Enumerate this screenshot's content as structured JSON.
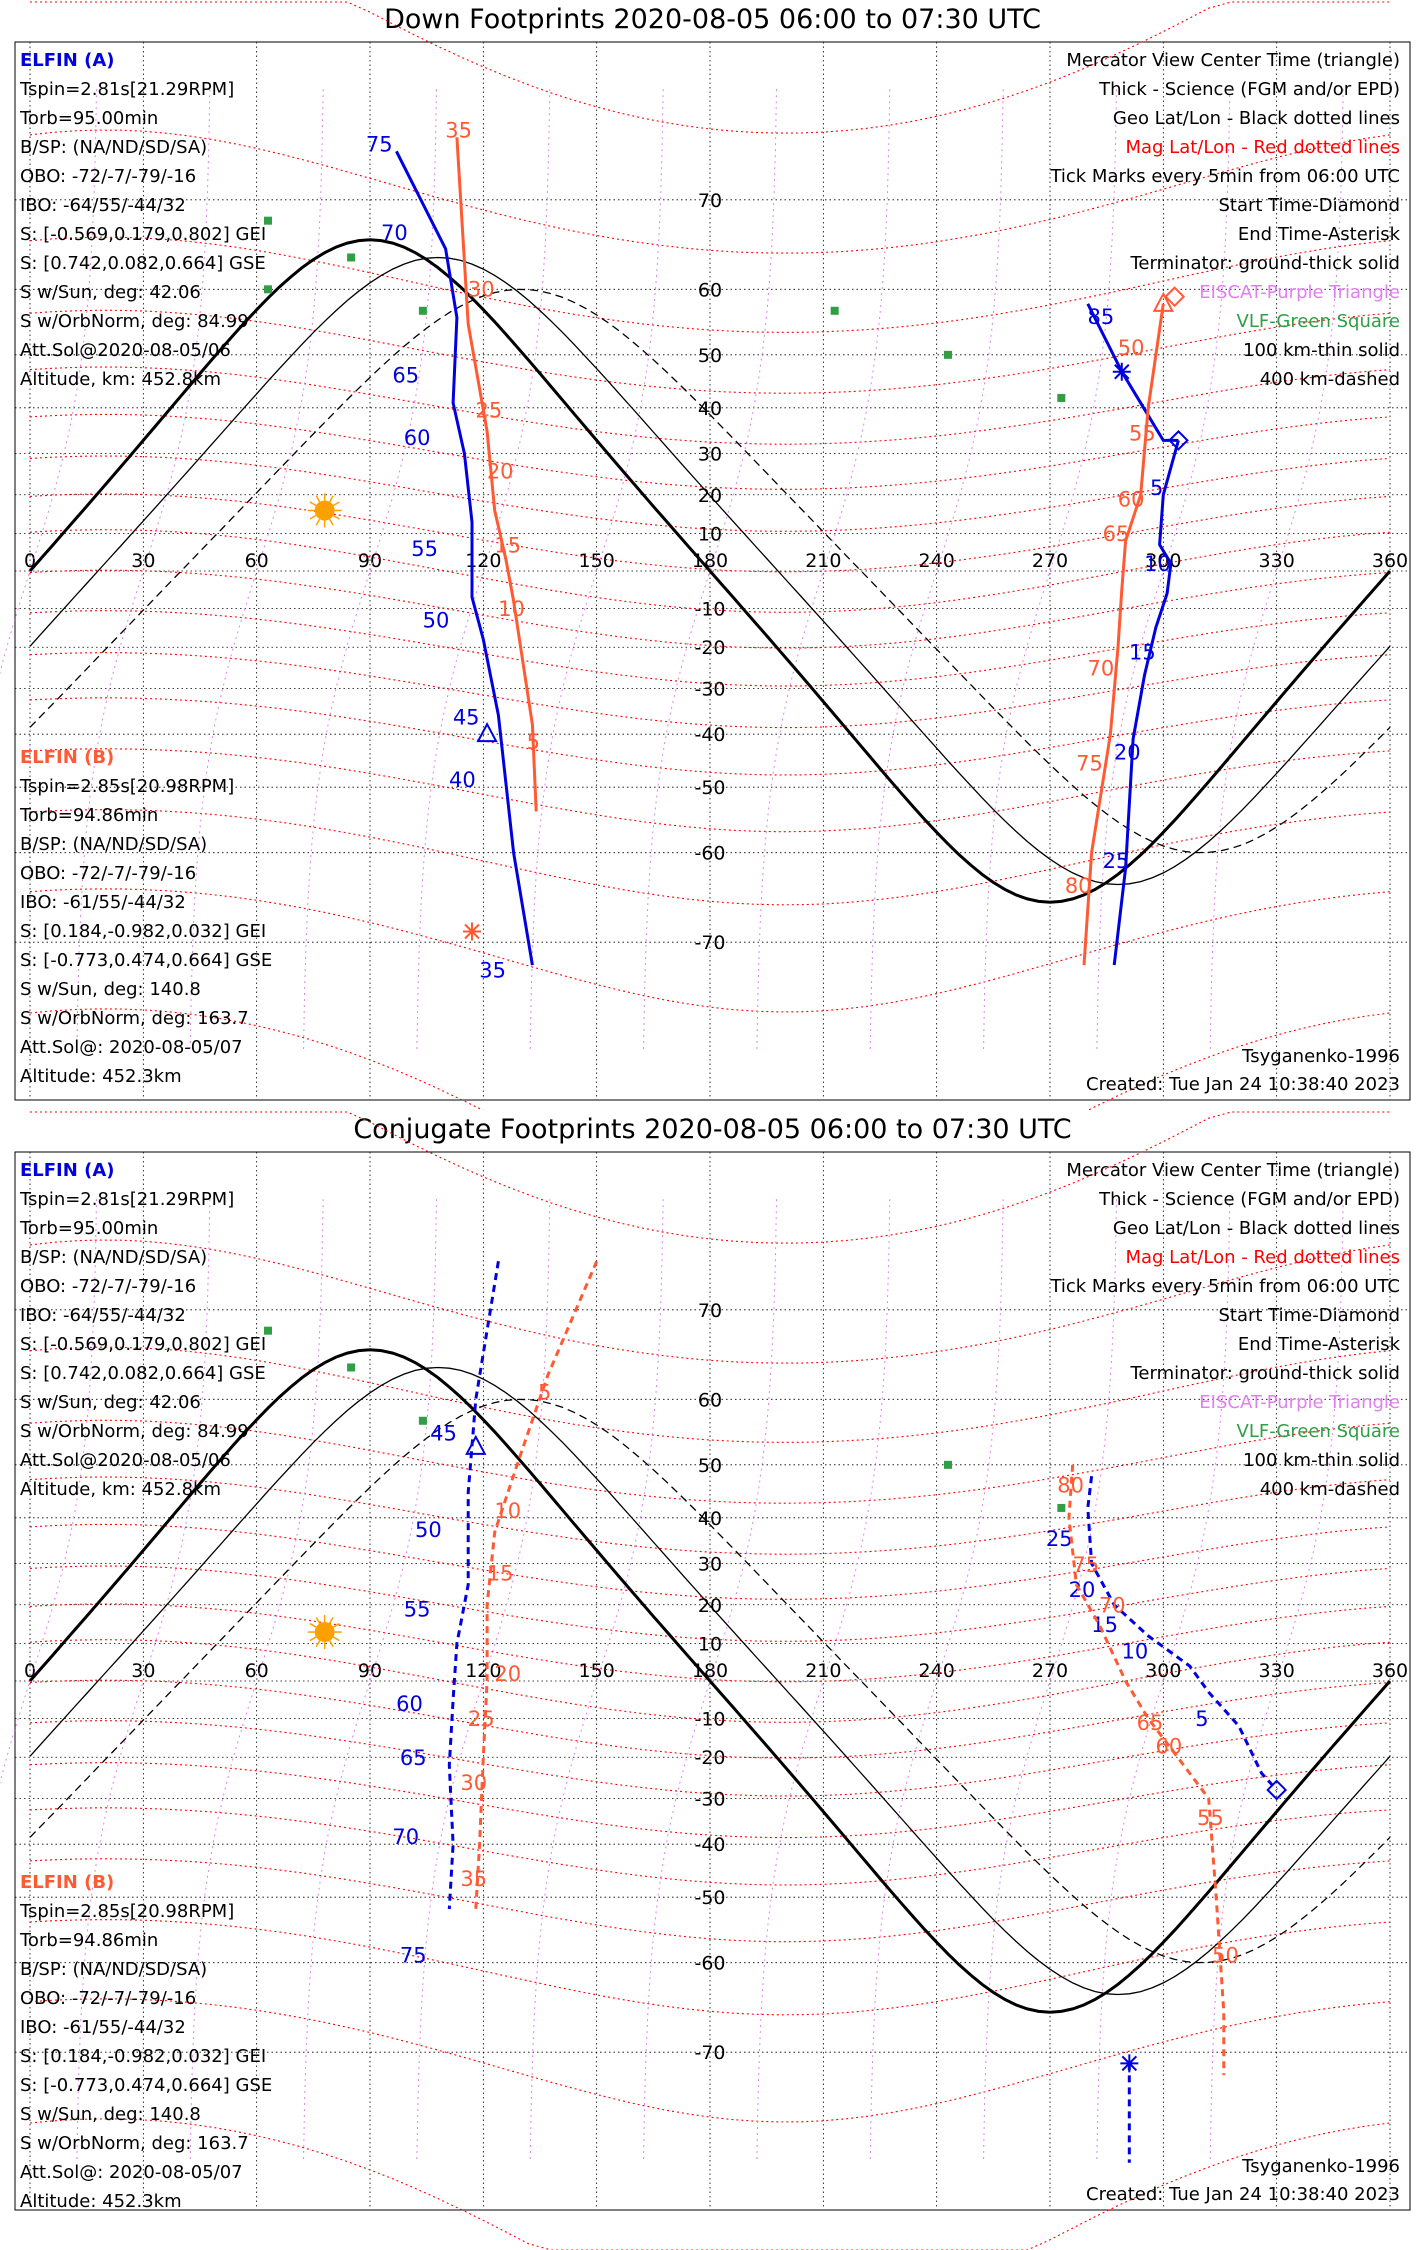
{
  "colors": {
    "sat_a": "#0000e0",
    "sat_b": "#ff5a33",
    "mag_grid": "#ff0000",
    "geo_grid": "#000000",
    "eiscat": "#e080f0",
    "vlf": "#2f9e44",
    "terminator": "#000000",
    "map": "#888888",
    "sun": "#ffa000"
  },
  "panels": [
    {
      "title": "Down Footprints 2020-08-05 06:00 to 07:30 UTC",
      "elfin_a": {
        "name": "ELFIN (A)",
        "lines": [
          "Tspin=2.81s[21.29RPM]",
          "Torb=95.00min",
          "B/SP: (NA/ND/SD/SA)",
          "OBO: -72/-7/-79/-16",
          "IBO: -64/55/-44/32",
          "S: [-0.569,0.179,0.802] GEI",
          "S: [0.742,0.082,0.664] GSE",
          "S w/Sun, deg: 42.06",
          "S w/OrbNorm, deg: 84.99",
          "Att.Sol@2020-08-05/06",
          "Altitude, km: 452.8km"
        ]
      },
      "elfin_b": {
        "name": "ELFIN (B)",
        "lines": [
          "Tspin=2.85s[20.98RPM]",
          "Torb=94.86min",
          "B/SP: (NA/ND/SD/SA)",
          "OBO: -72/-7/-79/-16",
          "IBO: -61/55/-44/32",
          "S: [0.184,-0.982,0.032] GEI",
          "S: [-0.773,0.474,0.664] GSE",
          "S w/Sun, deg: 140.8",
          "S w/OrbNorm, deg: 163.7",
          "Att.Sol@: 2020-08-05/07",
          "Altitude: 452.3km"
        ]
      },
      "legend": [
        "Mercator View Center Time (triangle)",
        "Thick - Science (FGM and/or EPD)",
        "Geo Lat/Lon - Black dotted lines",
        "Mag Lat/Lon - Red dotted lines",
        "Tick Marks every 5min from 06:00 UTC",
        "Start Time-Diamond",
        "End Time-Asterisk",
        "Terminator: ground-thick solid",
        "EISCAT-Purple Triangle",
        "VLF-Green Square",
        "100 km-thin solid",
        "400 km-dashed"
      ],
      "model": "Tsyganenko-1996",
      "created": "Created: Tue Jan 24 10:38:40 2023"
    },
    {
      "title": "Conjugate Footprints 2020-08-05 06:00 to 07:30 UTC",
      "elfin_a": {
        "name": "ELFIN (A)",
        "lines": [
          "Tspin=2.81s[21.29RPM]",
          "Torb=95.00min",
          "B/SP: (NA/ND/SD/SA)",
          "OBO: -72/-7/-79/-16",
          "IBO: -64/55/-44/32",
          "S: [-0.569,0.179,0.802] GEI",
          "S: [0.742,0.082,0.664] GSE",
          "S w/Sun, deg: 42.06",
          "S w/OrbNorm, deg: 84.99",
          "Att.Sol@2020-08-05/06",
          "Altitude, km: 452.8km"
        ]
      },
      "elfin_b": {
        "name": "ELFIN (B)",
        "lines": [
          "Tspin=2.85s[20.98RPM]",
          "Torb=94.86min",
          "B/SP: (NA/ND/SD/SA)",
          "OBO: -72/-7/-79/-16",
          "IBO: -61/55/-44/32",
          "S: [0.184,-0.982,0.032] GEI",
          "S: [-0.773,0.474,0.664] GSE",
          "S w/Sun, deg: 140.8",
          "S w/OrbNorm, deg: 163.7",
          "Att.Sol@: 2020-08-05/07",
          "Altitude: 452.3km"
        ]
      },
      "legend": [
        "Mercator View Center Time (triangle)",
        "Thick - Science (FGM and/or EPD)",
        "Geo Lat/Lon - Black dotted lines",
        "Mag Lat/Lon - Red dotted lines",
        "Tick Marks every 5min from 06:00 UTC",
        "Start Time-Diamond",
        "End Time-Asterisk",
        "Terminator: ground-thick solid",
        "EISCAT-Purple Triangle",
        "VLF-Green Square",
        "100 km-thin solid",
        "400 km-dashed"
      ],
      "model": "Tsyganenko-1996",
      "created": "Created: Tue Jan 24 10:38:40 2023"
    }
  ],
  "chart_data": [
    {
      "type": "line",
      "title": "Down Footprints 2020-08-05 06:00 to 07:30 UTC",
      "xlim": [
        0,
        360
      ],
      "ylim": [
        -80,
        80
      ],
      "x_ticks": [
        0,
        30,
        60,
        90,
        120,
        150,
        180,
        210,
        240,
        270,
        300,
        330,
        360
      ],
      "lat_ticks": [
        70,
        60,
        50,
        40,
        30,
        20,
        10,
        -10,
        -20,
        -30,
        -40,
        -50,
        -60,
        -70
      ],
      "sun": {
        "x": 78,
        "y": 16
      },
      "vlf": [
        [
          85,
          64
        ],
        [
          104,
          57
        ],
        [
          63,
          68
        ],
        [
          213,
          57
        ],
        [
          243,
          50
        ],
        [
          273,
          42
        ],
        [
          63,
          60
        ]
      ],
      "series": [
        {
          "id": "a",
          "style": "solid",
          "points": [
            [
              97,
              74
            ],
            [
              110,
              65
            ],
            [
              113,
              56
            ],
            [
              112,
              41
            ],
            [
              115,
              30
            ],
            [
              117,
              13
            ],
            [
              117,
              -7
            ],
            [
              120,
              -18
            ],
            [
              124,
              -36
            ],
            [
              128,
              -60
            ],
            [
              133,
              -72
            ]
          ],
          "labels": [
            [
              75,
              96,
              74
            ],
            [
              70,
              100,
              66
            ],
            [
              65,
              103,
              45
            ],
            [
              60,
              106,
              32
            ],
            [
              55,
              108,
              4
            ],
            [
              50,
              111,
              -15
            ],
            [
              45,
              119,
              -38
            ],
            [
              40,
              118,
              -50
            ],
            [
              35,
              126,
              -73
            ]
          ],
          "start": [
            304,
            33
          ],
          "end": [
            289,
            47
          ],
          "center": [
            121,
            -40
          ]
        },
        {
          "id": "b",
          "style": "solid",
          "points": [
            [
              113,
              75
            ],
            [
              116,
              55
            ],
            [
              121,
              35
            ],
            [
              123,
              16
            ],
            [
              126,
              3
            ],
            [
              128,
              -8
            ],
            [
              133,
              -38
            ],
            [
              134,
              -54
            ]
          ],
          "labels": [
            [
              35,
              117,
              75
            ],
            [
              30,
              123,
              59
            ],
            [
              25,
              125,
              38
            ],
            [
              20,
              128,
              24
            ],
            [
              15,
              130,
              5
            ],
            [
              10,
              131,
              -12
            ],
            [
              5,
              135,
              -43
            ]
          ],
          "start": [
            303,
            59
          ],
          "end": [
            117,
            -69
          ],
          "center": [
            300,
            58
          ]
        },
        {
          "id": "a2",
          "style": "solid",
          "points": [
            [
              280,
              58
            ],
            [
              289,
              47
            ],
            [
              300,
              33
            ],
            [
              304,
              33
            ]
          ],
          "labels": [
            [
              85,
              287,
              55
            ]
          ]
        },
        {
          "id": "a3",
          "style": "solid",
          "points": [
            [
              304,
              33
            ],
            [
              300,
              20
            ],
            [
              299,
              7
            ],
            [
              302,
              2
            ],
            [
              301,
              -6
            ],
            [
              298,
              -15
            ],
            [
              295,
              -27
            ],
            [
              292,
              -41
            ],
            [
              290,
              -62
            ],
            [
              287,
              -72
            ]
          ],
          "labels": [
            [
              5,
              300,
              20
            ],
            [
              10,
              302,
              0
            ],
            [
              15,
              298,
              -23
            ],
            [
              20,
              294,
              -45
            ],
            [
              25,
              291,
              -62
            ]
          ]
        },
        {
          "id": "b2",
          "style": "solid",
          "points": [
            [
              300,
              58
            ],
            [
              296,
              40
            ],
            [
              294,
              20
            ],
            [
              290,
              8
            ],
            [
              289,
              -5
            ],
            [
              288,
              -20
            ],
            [
              286,
              -40
            ],
            [
              281,
              -60
            ],
            [
              279,
              -72
            ]
          ],
          "labels": [
            [
              50,
              295,
              50
            ],
            [
              55,
              298,
              33
            ],
            [
              60,
              295,
              17
            ],
            [
              65,
              291,
              8
            ],
            [
              70,
              287,
              -27
            ],
            [
              75,
              284,
              -47
            ],
            [
              80,
              281,
              -65
            ]
          ]
        }
      ],
      "terminator": "thick",
      "model": "Tsyganenko-1996"
    },
    {
      "type": "line",
      "title": "Conjugate Footprints 2020-08-05 06:00 to 07:30 UTC",
      "xlim": [
        0,
        360
      ],
      "ylim": [
        -80,
        80
      ],
      "x_ticks": [
        0,
        30,
        60,
        90,
        120,
        150,
        180,
        210,
        240,
        270,
        300,
        330,
        360
      ],
      "lat_ticks": [
        70,
        60,
        50,
        40,
        30,
        20,
        10,
        -10,
        -20,
        -30,
        -40,
        -50,
        -60,
        -70
      ],
      "sun": {
        "x": 78,
        "y": 13
      },
      "vlf": [
        [
          85,
          64
        ],
        [
          104,
          57
        ],
        [
          63,
          68
        ],
        [
          243,
          50
        ],
        [
          273,
          42
        ]
      ],
      "series": [
        {
          "id": "a",
          "style": "dashed",
          "points": [
            [
              124,
              74
            ],
            [
              118,
              60
            ],
            [
              116,
              45
            ],
            [
              116,
              25
            ],
            [
              113,
              10
            ],
            [
              112,
              -5
            ],
            [
              111,
              -22
            ],
            [
              112,
              -40
            ],
            [
              111,
              -52
            ]
          ],
          "labels": [
            [
              45,
              113,
              54
            ],
            [
              50,
              109,
              36
            ],
            [
              55,
              106,
              17
            ],
            [
              60,
              104,
              -8
            ],
            [
              65,
              105,
              -22
            ],
            [
              70,
              103,
              -40
            ],
            [
              75,
              105,
              -60
            ]
          ],
          "center": [
            118,
            53
          ]
        },
        {
          "id": "b",
          "style": "dashed",
          "points": [
            [
              150,
              74
            ],
            [
              137,
              63
            ],
            [
              130,
              52
            ],
            [
              123,
              37
            ],
            [
              121,
              20
            ],
            [
              121,
              0
            ],
            [
              120,
              -20
            ],
            [
              119,
              -40
            ],
            [
              118,
              -52
            ]
          ],
          "labels": [
            [
              5,
              138,
              60
            ],
            [
              10,
              130,
              40
            ],
            [
              15,
              128,
              26
            ],
            [
              20,
              130,
              0
            ],
            [
              25,
              123,
              -12
            ],
            [
              30,
              121,
              -28
            ],
            [
              35,
              121,
              -48
            ]
          ]
        },
        {
          "id": "a2",
          "style": "dashed",
          "points": [
            [
              281,
              48
            ],
            [
              280,
              42
            ],
            [
              281,
              30
            ],
            [
              287,
              20
            ],
            [
              296,
              12
            ],
            [
              307,
              4
            ],
            [
              312,
              -3
            ],
            [
              320,
              -12
            ],
            [
              326,
              -24
            ],
            [
              330,
              -28
            ]
          ],
          "labels": [
            [
              25,
              276,
              34
            ],
            [
              20,
              282,
              22
            ],
            [
              15,
              288,
              13
            ],
            [
              10,
              296,
              6
            ],
            [
              5,
              312,
              -12
            ]
          ],
          "start": [
            330,
            -28
          ],
          "end": [
            291,
            -71
          ]
        },
        {
          "id": "b2",
          "style": "dashed",
          "points": [
            [
              276,
              50
            ],
            [
              275,
              40
            ],
            [
              277,
              25
            ],
            [
              283,
              15
            ],
            [
              290,
              0
            ],
            [
              296,
              -10
            ],
            [
              303,
              -19
            ],
            [
              312,
              -30
            ],
            [
              314,
              -50
            ],
            [
              316,
              -66
            ],
            [
              316,
              -72
            ]
          ],
          "labels": [
            [
              80,
              279,
              45
            ],
            [
              75,
              283,
              28
            ],
            [
              70,
              290,
              18
            ],
            [
              65,
              300,
              -13
            ],
            [
              60,
              305,
              -19
            ],
            [
              55,
              316,
              -36
            ],
            [
              50,
              320,
              -60
            ]
          ]
        },
        {
          "id": "a3",
          "style": "dashed",
          "points": [
            [
              291,
              -71
            ],
            [
              291,
              -78
            ]
          ],
          "labels": []
        }
      ],
      "terminator": "thick",
      "model": "Tsyganenko-1996"
    }
  ]
}
